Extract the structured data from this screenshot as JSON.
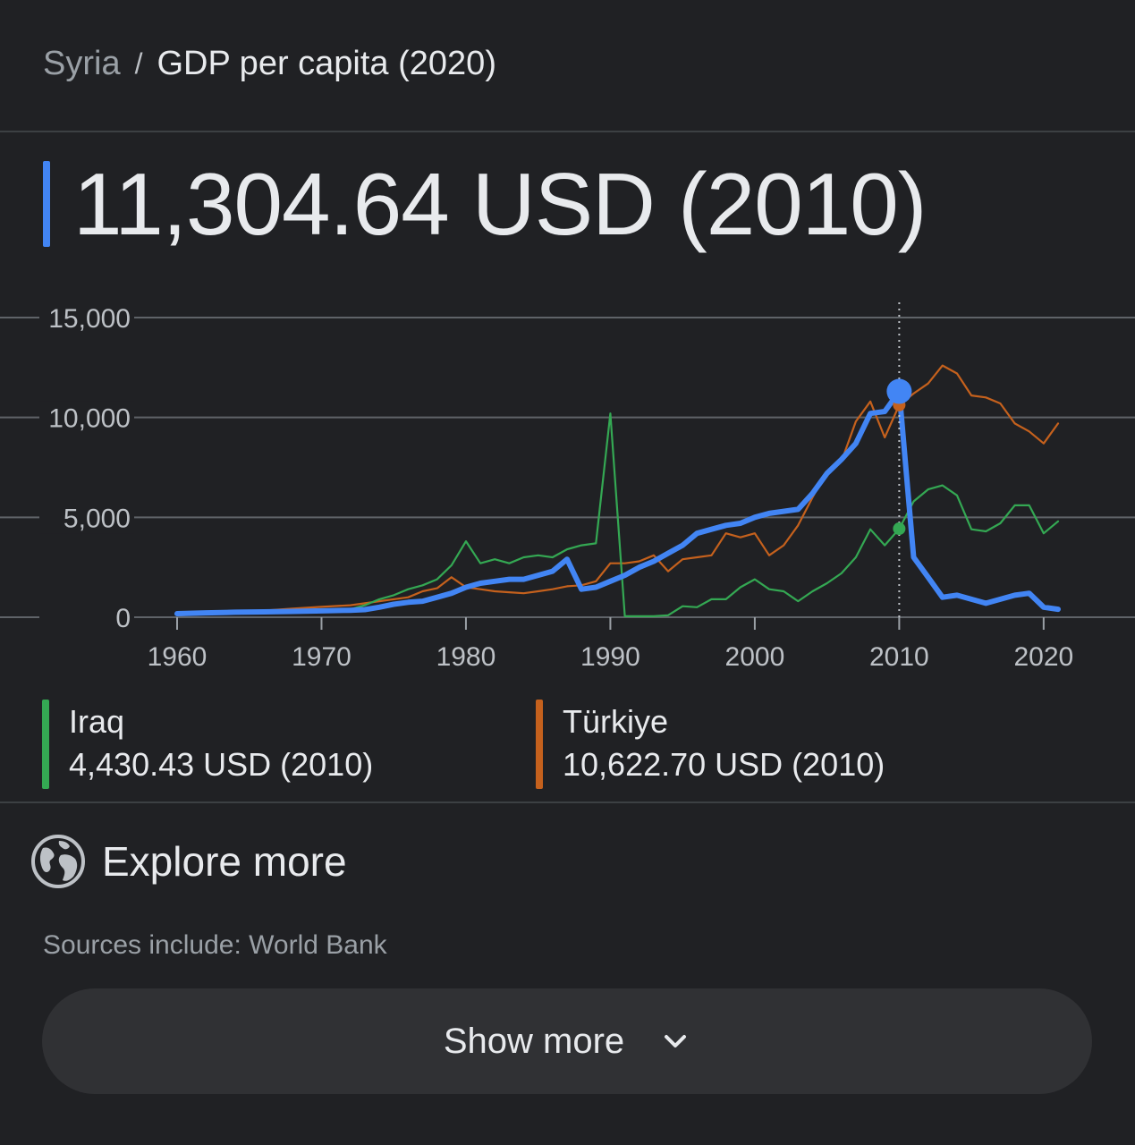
{
  "breadcrumb": {
    "country": "Syria",
    "separator": "/",
    "metric": "GDP per capita (2020)"
  },
  "headline": {
    "value": "11,304.64 USD (2010)",
    "color": "#4285f4"
  },
  "chart_data": {
    "type": "line",
    "x_ticks": [
      "1960",
      "1970",
      "1980",
      "1990",
      "2000",
      "2010",
      "2020"
    ],
    "y_ticks": [
      "15,000",
      "10,000",
      "5,000",
      "0"
    ],
    "xlim": [
      1960,
      2021
    ],
    "ylim": [
      0,
      15000
    ],
    "grid": true,
    "highlight_year": 2010,
    "series": [
      {
        "name": "Türkiye",
        "color": "#c5611d",
        "width": 2.2,
        "x": [
          1960,
          1962,
          1964,
          1966,
          1968,
          1970,
          1972,
          1974,
          1976,
          1977,
          1978,
          1979,
          1980,
          1981,
          1982,
          1983,
          1984,
          1985,
          1986,
          1987,
          1988,
          1989,
          1990,
          1991,
          1992,
          1993,
          1994,
          1995,
          1996,
          1997,
          1998,
          1999,
          2000,
          2001,
          2002,
          2003,
          2004,
          2005,
          2006,
          2007,
          2008,
          2009,
          2010,
          2011,
          2012,
          2013,
          2014,
          2015,
          2016,
          2017,
          2018,
          2019,
          2020,
          2021
        ],
        "y": [
          100,
          150,
          230,
          330,
          430,
          520,
          600,
          800,
          1000,
          1300,
          1450,
          2000,
          1500,
          1400,
          1300,
          1250,
          1200,
          1300,
          1400,
          1550,
          1600,
          1800,
          2700,
          2700,
          2800,
          3100,
          2300,
          2900,
          3000,
          3100,
          4200,
          4000,
          4200,
          3100,
          3600,
          4600,
          6000,
          7300,
          7800,
          9800,
          10800,
          9000,
          10622.7,
          11200,
          11700,
          12600,
          12200,
          11100,
          11000,
          10700,
          9700,
          9300,
          8700,
          9700
        ]
      },
      {
        "name": "Iraq",
        "color": "#34a853",
        "width": 2.2,
        "x": [
          1960,
          1962,
          1964,
          1966,
          1968,
          1970,
          1972,
          1973,
          1974,
          1975,
          1976,
          1977,
          1978,
          1979,
          1980,
          1981,
          1982,
          1983,
          1984,
          1985,
          1986,
          1987,
          1988,
          1989,
          1990,
          1991,
          1992,
          1993,
          1994,
          1995,
          1996,
          1997,
          1998,
          1999,
          2000,
          2001,
          2002,
          2003,
          2004,
          2005,
          2006,
          2007,
          2008,
          2009,
          2010,
          2011,
          2012,
          2013,
          2014,
          2015,
          2016,
          2017,
          2018,
          2019,
          2020,
          2021
        ],
        "y": [
          150,
          180,
          220,
          260,
          300,
          320,
          400,
          600,
          900,
          1100,
          1400,
          1600,
          1900,
          2600,
          3800,
          2700,
          2900,
          2700,
          3000,
          3100,
          3000,
          3400,
          3600,
          3700,
          10200,
          50,
          50,
          50,
          100,
          550,
          500,
          900,
          900,
          1500,
          1900,
          1400,
          1300,
          800,
          1300,
          1700,
          2200,
          3000,
          4400,
          3600,
          4430.43,
          5800,
          6400,
          6600,
          6100,
          4400,
          4300,
          4700,
          5600,
          5600,
          4200,
          4800
        ]
      },
      {
        "name": "Syria",
        "color": "#4285f4",
        "width": 6,
        "x": [
          1960,
          1962,
          1964,
          1966,
          1968,
          1970,
          1972,
          1973,
          1974,
          1975,
          1976,
          1977,
          1978,
          1979,
          1980,
          1981,
          1982,
          1983,
          1984,
          1985,
          1986,
          1987,
          1988,
          1989,
          1990,
          1991,
          1992,
          1993,
          1994,
          1995,
          1996,
          1997,
          1998,
          1999,
          2000,
          2001,
          2002,
          2003,
          2004,
          2005,
          2006,
          2007,
          2008,
          2009,
          2010,
          2011,
          2012,
          2013,
          2014,
          2015,
          2016,
          2017,
          2018,
          2019,
          2020,
          2021
        ],
        "y": [
          180,
          220,
          250,
          270,
          290,
          320,
          350,
          380,
          500,
          650,
          750,
          800,
          1000,
          1200,
          1500,
          1700,
          1800,
          1900,
          1900,
          2100,
          2300,
          2900,
          1400,
          1500,
          1800,
          2100,
          2500,
          2800,
          3200,
          3600,
          4200,
          4400,
          4600,
          4700,
          5000,
          5200,
          5300,
          5400,
          6200,
          7200,
          7900,
          8700,
          10200,
          10300,
          11304.64,
          3000,
          2000,
          1000,
          1100,
          900,
          700,
          900,
          1100,
          1200,
          500,
          400
        ]
      }
    ]
  },
  "legend": [
    {
      "name": "Iraq",
      "value": "4,430.43 USD (2010)",
      "color": "#34a853"
    },
    {
      "name": "Türkiye",
      "value": "10,622.70 USD (2010)",
      "color": "#c5611d"
    }
  ],
  "explore": {
    "label": "Explore more",
    "icon": "globe-icon"
  },
  "sources": "Sources include: World Bank",
  "show_more": {
    "label": "Show more",
    "icon": "chevron-down-icon"
  }
}
